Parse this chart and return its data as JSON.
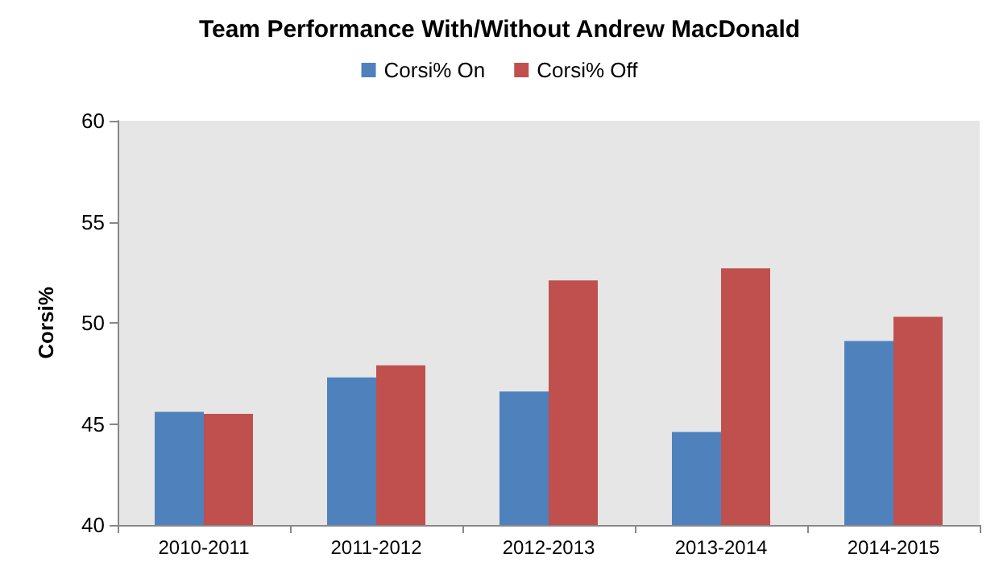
{
  "chart_data": {
    "type": "bar",
    "title": "Team Performance With/Without Andrew MacDonald",
    "ylabel": "Corsi%",
    "categories": [
      "2010-2011",
      "2011-2012",
      "2012-2013",
      "2013-2014",
      "2014-2015"
    ],
    "series": [
      {
        "name": "Corsi% On",
        "color": "#4f81bd",
        "values": [
          45.6,
          47.3,
          46.6,
          44.6,
          49.1
        ]
      },
      {
        "name": "Corsi% Off",
        "color": "#c0504d",
        "values": [
          45.5,
          47.9,
          52.1,
          52.7,
          50.3
        ]
      }
    ],
    "ylim": [
      40,
      60
    ],
    "yticks": [
      40,
      45,
      50,
      55,
      60
    ],
    "grid": false,
    "legend": "top"
  }
}
